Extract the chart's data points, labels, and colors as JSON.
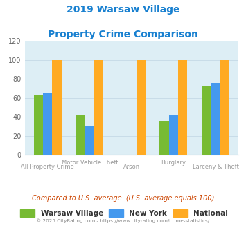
{
  "title_line1": "2019 Warsaw Village",
  "title_line2": "Property Crime Comparison",
  "title_color": "#1880d0",
  "categories": [
    "All Property Crime",
    "Motor Vehicle Theft",
    "Arson",
    "Burglary",
    "Larceny & Theft"
  ],
  "warsaw_values": [
    63,
    42,
    0,
    36,
    72
  ],
  "newyork_values": [
    65,
    30,
    0,
    42,
    76
  ],
  "national_values": [
    100,
    100,
    100,
    100,
    100
  ],
  "warsaw_color": "#77bb33",
  "newyork_color": "#4499ee",
  "national_color": "#ffaa22",
  "ylim": [
    0,
    120
  ],
  "yticks": [
    0,
    20,
    40,
    60,
    80,
    100,
    120
  ],
  "grid_color": "#c8dce8",
  "bg_color": "#ddeef5",
  "footer_text": "© 2025 CityRating.com - https://www.cityrating.com/crime-statistics/",
  "compare_text": "Compared to U.S. average. (U.S. average equals 100)",
  "legend_labels": [
    "Warsaw Village",
    "New York",
    "National"
  ],
  "bar_width": 0.22
}
